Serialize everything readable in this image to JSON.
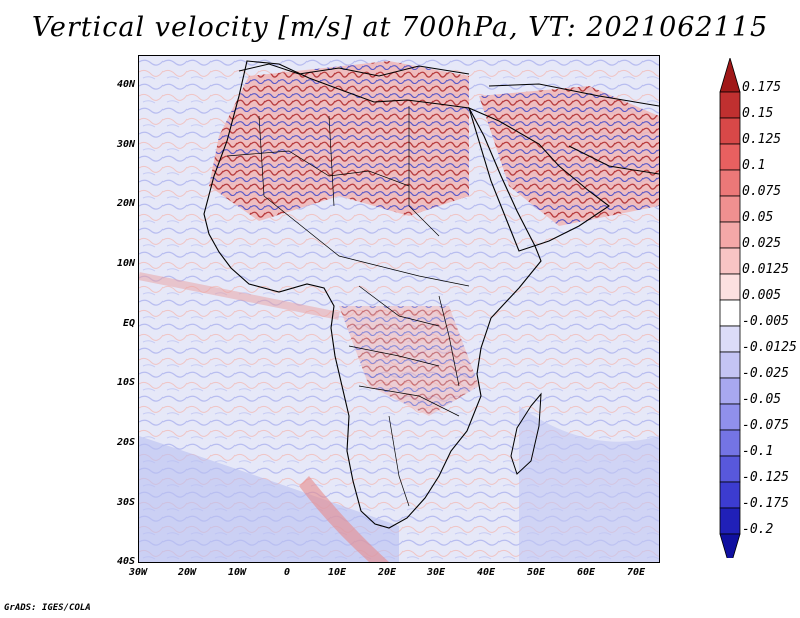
{
  "title": "Vertical velocity [m/s] at 700hPa, VT: 2021062115",
  "lat_labels": [
    "40N",
    "30N",
    "20N",
    "10N",
    "EQ",
    "10S",
    "20S",
    "30S",
    "40S"
  ],
  "lon_labels": [
    "30W",
    "20W",
    "10W",
    "0",
    "10E",
    "20E",
    "30E",
    "40E",
    "50E",
    "60E",
    "70E"
  ],
  "colorbar": {
    "labels": [
      "0.175",
      "0.15",
      "0.125",
      "0.1",
      "0.075",
      "0.05",
      "0.025",
      "0.0125",
      "0.005",
      "-0.005",
      "-0.0125",
      "-0.025",
      "-0.05",
      "-0.075",
      "-0.1",
      "-0.125",
      "-0.175",
      "-0.2"
    ],
    "colors": [
      "#a01818",
      "#c03030",
      "#d84848",
      "#e86060",
      "#ec7878",
      "#f09090",
      "#f4a8a8",
      "#f8c4c4",
      "#fce0e0",
      "#ffffff",
      "#dcdcf8",
      "#c4c4f4",
      "#a8a8f0",
      "#9090ec",
      "#7474e4",
      "#5858dc",
      "#3c3cd0",
      "#2020b8",
      "#1010a0"
    ]
  },
  "footer": "GrADS: IGES/COLA"
}
